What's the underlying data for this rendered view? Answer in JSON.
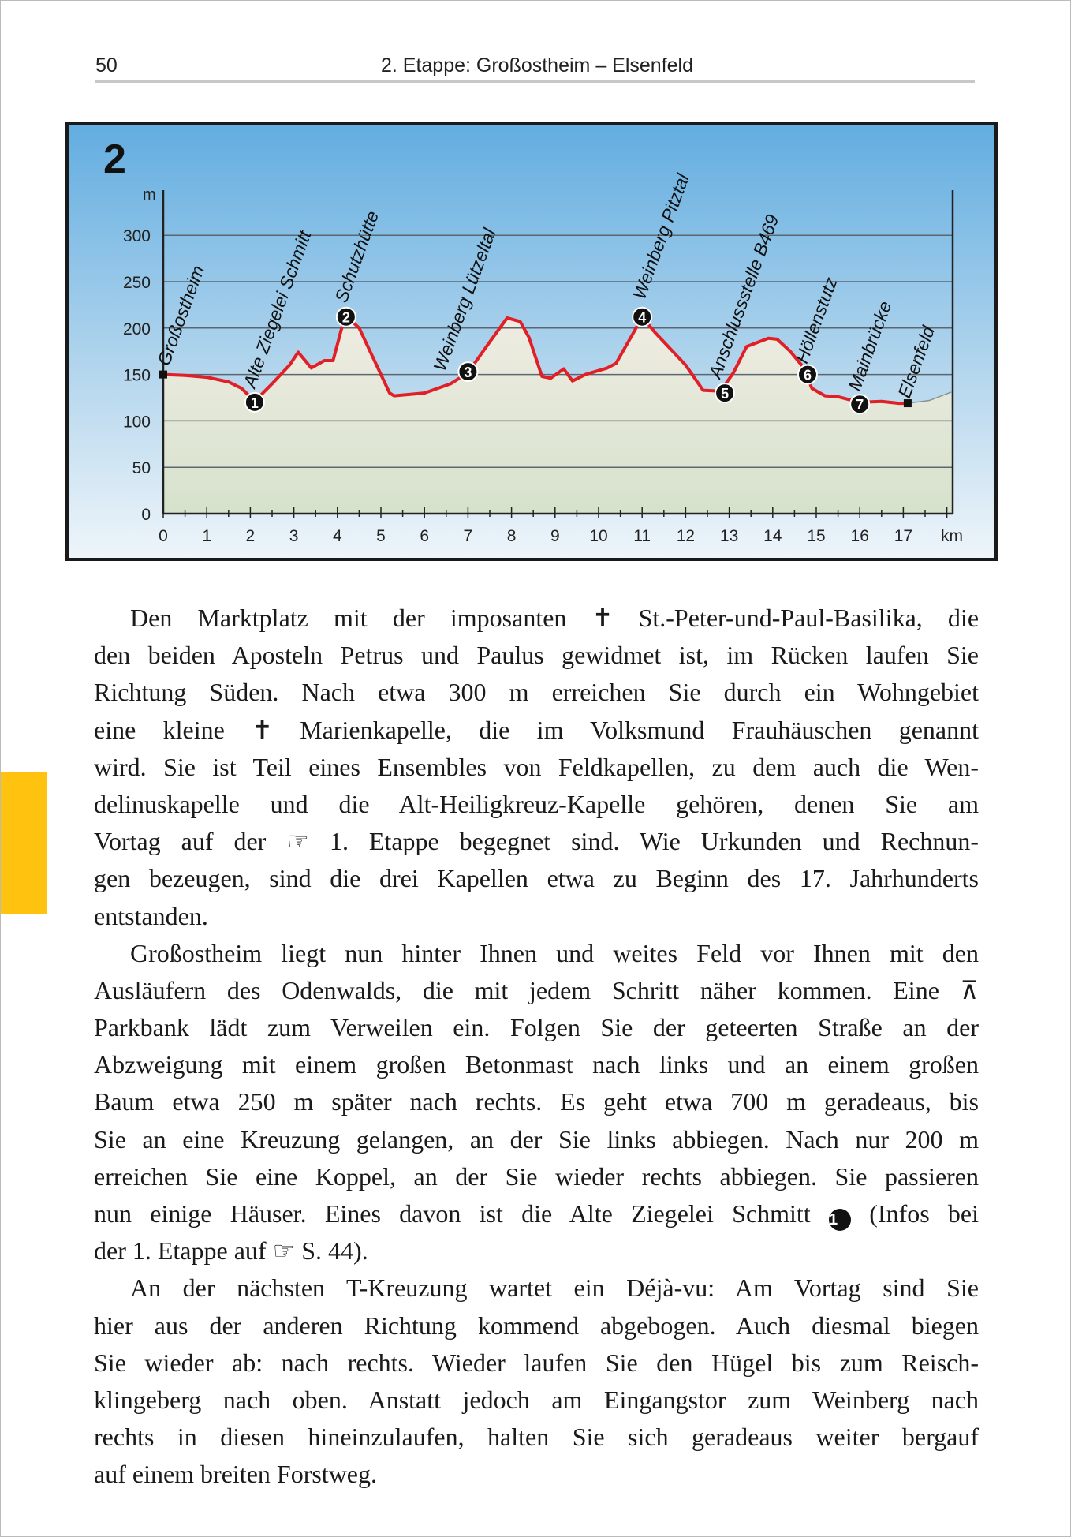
{
  "header": {
    "page_number": "50",
    "title": "2. Etappe: Großostheim – Elsenfeld"
  },
  "accent_color": "#FFC20E",
  "chart_data": {
    "type": "area",
    "stage_number": "2",
    "ylabel": "m",
    "xlabel": "km",
    "xlim": [
      0,
      18.1
    ],
    "ylim": [
      0,
      300
    ],
    "yticks": [
      0,
      50,
      100,
      150,
      200,
      250,
      300
    ],
    "xticks": [
      0,
      1,
      2,
      3,
      4,
      5,
      6,
      7,
      8,
      9,
      10,
      11,
      12,
      13,
      14,
      15,
      16,
      17
    ],
    "grid": true,
    "line_color": "#e01f26",
    "profile": [
      [
        0,
        150
      ],
      [
        0.5,
        149
      ],
      [
        1,
        147
      ],
      [
        1.5,
        142
      ],
      [
        1.8,
        135
      ],
      [
        2.1,
        121
      ],
      [
        2.5,
        140
      ],
      [
        2.9,
        160
      ],
      [
        3.1,
        174
      ],
      [
        3.4,
        157
      ],
      [
        3.7,
        165
      ],
      [
        3.9,
        165
      ],
      [
        4.1,
        200
      ],
      [
        4.25,
        211
      ],
      [
        4.5,
        200
      ],
      [
        4.8,
        170
      ],
      [
        5.2,
        130
      ],
      [
        5.3,
        127
      ],
      [
        6,
        130
      ],
      [
        6.6,
        140
      ],
      [
        7,
        152
      ],
      [
        7.5,
        185
      ],
      [
        7.9,
        211
      ],
      [
        8.2,
        207
      ],
      [
        8.4,
        190
      ],
      [
        8.7,
        148
      ],
      [
        8.9,
        146
      ],
      [
        9.2,
        156
      ],
      [
        9.4,
        143
      ],
      [
        9.7,
        150
      ],
      [
        10.2,
        157
      ],
      [
        10.4,
        162
      ],
      [
        10.8,
        195
      ],
      [
        11,
        212
      ],
      [
        11.3,
        195
      ],
      [
        11.5,
        185
      ],
      [
        12,
        160
      ],
      [
        12.4,
        133
      ],
      [
        12.8,
        132
      ],
      [
        13.1,
        152
      ],
      [
        13.4,
        180
      ],
      [
        13.9,
        189
      ],
      [
        14.1,
        188
      ],
      [
        14.4,
        175
      ],
      [
        14.7,
        158
      ],
      [
        14.9,
        135
      ],
      [
        15.2,
        127
      ],
      [
        15.5,
        126
      ],
      [
        16,
        120
      ],
      [
        16.5,
        121
      ],
      [
        16.9,
        119
      ],
      [
        17.1,
        119
      ]
    ],
    "terrain_continuation": [
      [
        17.1,
        119
      ],
      [
        17.6,
        122
      ],
      [
        18.1,
        131
      ]
    ],
    "start": {
      "label": "Großostheim",
      "km": 0,
      "m": 150
    },
    "end": {
      "label": "Elsenfeld",
      "km": 17.1,
      "m": 119
    },
    "waypoints": [
      {
        "number": "1",
        "label": "Alte Ziegelei Schmitt",
        "km": 2.1,
        "m": 120
      },
      {
        "number": "2",
        "label": "Schutzhütte",
        "km": 4.2,
        "m": 212
      },
      {
        "number": "3",
        "label": "Weinberg Lützeltal",
        "km": 7.0,
        "m": 153
      },
      {
        "number": "4",
        "label": "Weinberg Pitztal",
        "km": 11.0,
        "m": 212
      },
      {
        "number": "5",
        "label": "Anschlussstelle B469",
        "km": 12.9,
        "m": 130
      },
      {
        "number": "6",
        "label": "Höllenstutz",
        "km": 14.8,
        "m": 150
      },
      {
        "number": "7",
        "label": "Mainbrücke",
        "km": 16.0,
        "m": 118
      }
    ]
  },
  "body": {
    "l0a": "Den Marktplatz mit der imposanten",
    "l0b": "St.-Peter-und-Paul-Basilika, die",
    "l1": "den beiden Aposteln Petrus und Paulus gewidmet ist, im Rücken laufen Sie",
    "l2": "Richtung Süden. Nach etwa 300 m erreichen Sie durch ein Wohngebiet",
    "l3a": "eine kleine",
    "l3b": "Marienkapelle, die im Volksmund Frauhäuschen genannt",
    "l4": "wird. Sie ist Teil eines Ensembles von Feldkapellen, zu dem auch die Wen-",
    "l5": "delinuskapelle und die Alt-Heiligkreuz-Kapelle gehören, denen Sie am",
    "l6a": "Vortag auf der",
    "l6b": "1. Etappe begegnet sind. Wie Urkunden und Rechnun-",
    "l7": "gen bezeugen, sind die drei Kapellen etwa zu Beginn des 17. Jahrhunderts",
    "l8": "entstanden.",
    "l9": "Großostheim liegt nun hinter Ihnen und weites Feld vor Ihnen mit den",
    "l10": "Ausläufern des Odenwalds, die mit jedem Schritt näher kommen. Eine",
    "l11": "Parkbank lädt zum Verweilen ein. Folgen Sie der geteerten Straße an der",
    "l12": "Abzweigung mit einem großen Betonmast nach links und an einem großen",
    "l13": "Baum etwa 250 m später nach rechts. Es geht etwa 700 m geradeaus, bis",
    "l14": "Sie an eine Kreuzung gelangen, an der Sie links abbiegen. Nach nur 200 m",
    "l15": "erreichen Sie eine Koppel, an der Sie wieder rechts abbiegen. Sie passieren",
    "l16a": "nun einige Häuser. Eines davon ist die Alte Ziegelei Schmitt",
    "l16n": "1",
    "l16b": "(Infos bei",
    "l17a": "der 1. Etappe auf",
    "l17b": "S. 44).",
    "l18": "An der nächsten T-Kreuzung wartet ein Déjà-vu: Am Vortag sind Sie",
    "l19": "hier aus der anderen Richtung kommend abgebogen. Auch diesmal biegen",
    "l20": "Sie wieder ab: nach rechts. Wieder laufen Sie den Hügel bis zum Reisch-",
    "l21": "klingeberg nach oben. Anstatt jedoch am Eingangstor zum Weinberg nach",
    "l22": "rechts in diesen hineinzulaufen, halten Sie sich geradeaus weiter bergauf",
    "l23": "auf einem breiten Forstweg."
  },
  "icons": {
    "church": "cross-icon",
    "reference": "pointing-hand-icon",
    "rest": "picnic-bench-icon"
  }
}
